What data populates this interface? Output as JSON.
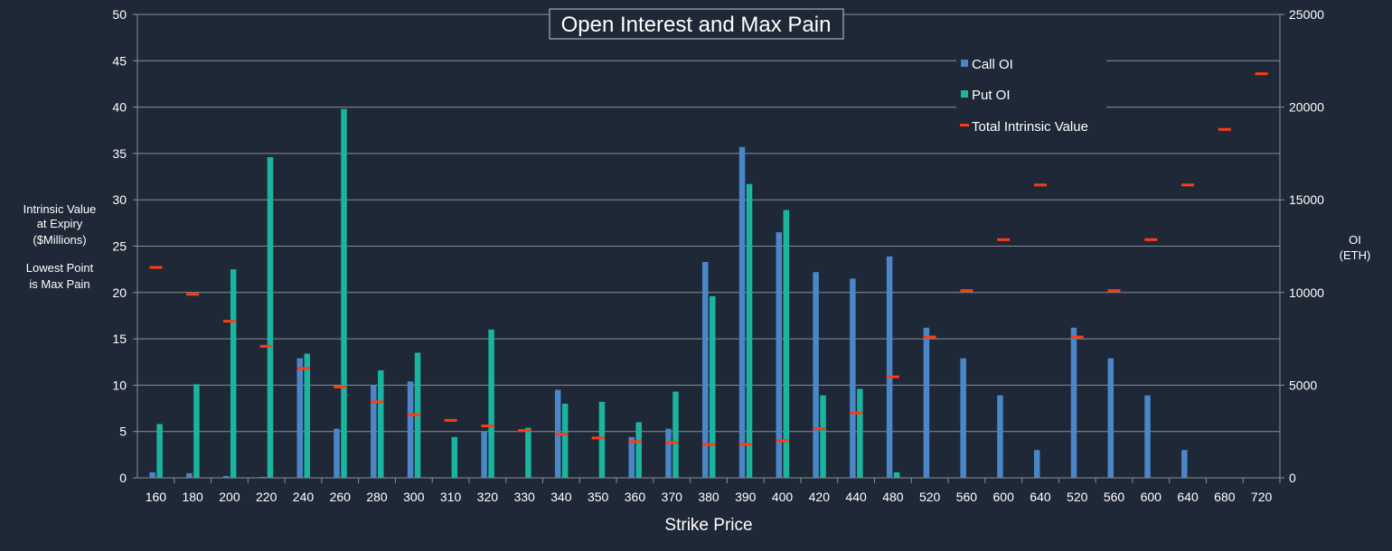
{
  "chart_data": {
    "type": "bar",
    "title": "Open Interest and Max Pain",
    "xlabel": "Strike Price",
    "ylabel_left_lines": [
      "Intrinsic Value",
      "at Expiry",
      "($Millions)"
    ],
    "ylabel_left_note_lines": [
      "Lowest Point",
      "is Max Pain"
    ],
    "ylabel_right_lines": [
      "OI",
      "(ETH)"
    ],
    "ylim_left": [
      0,
      50
    ],
    "yticks_left": [
      "0",
      "5",
      "10",
      "15",
      "20",
      "25",
      "30",
      "35",
      "40",
      "45",
      "50"
    ],
    "ylim_right": [
      0,
      25000
    ],
    "yticks_right": [
      "0",
      "5000",
      "10000",
      "15000",
      "20000",
      "25000"
    ],
    "grid": true,
    "legend_position": "top-right",
    "categories": [
      "160",
      "180",
      "200",
      "220",
      "240",
      "260",
      "280",
      "300",
      "310",
      "320",
      "330",
      "340",
      "350",
      "360",
      "370",
      "380",
      "390",
      "400",
      "420",
      "440",
      "480",
      "520",
      "560",
      "600",
      "640",
      "520",
      "560",
      "600",
      "640",
      "680",
      "720"
    ],
    "series": [
      {
        "name": "Call OI",
        "axis": "right",
        "color": "#4a86c8",
        "values": [
          300,
          250,
          100,
          50,
          6450,
          2650,
          5000,
          5200,
          0,
          2500,
          0,
          4750,
          0,
          2200,
          2650,
          11650,
          17850,
          13250,
          11100,
          10750,
          11950,
          8100,
          6450,
          4450,
          1500,
          8100,
          6450,
          4450,
          1500,
          0,
          0
        ]
      },
      {
        "name": "Put OI",
        "axis": "right",
        "color": "#1ab5a0",
        "values": [
          2900,
          5050,
          11250,
          17300,
          6700,
          19900,
          5800,
          6750,
          2200,
          8000,
          2700,
          4000,
          4100,
          3000,
          4650,
          9800,
          15850,
          14450,
          4450,
          4800,
          300,
          0,
          0,
          0,
          0,
          0,
          0,
          0,
          0,
          0,
          0
        ]
      },
      {
        "name": "Total Intrinsic Value",
        "axis": "left",
        "color": "#ff3b14",
        "values": [
          22.7,
          19.8,
          16.9,
          14.2,
          11.8,
          9.8,
          8.2,
          6.8,
          6.2,
          5.6,
          5.1,
          4.7,
          4.3,
          3.9,
          3.8,
          3.6,
          3.6,
          4.0,
          5.3,
          7.0,
          10.9,
          15.2,
          20.2,
          25.7,
          31.6,
          15.2,
          20.2,
          25.7,
          31.6,
          37.6,
          43.6
        ]
      }
    ]
  }
}
